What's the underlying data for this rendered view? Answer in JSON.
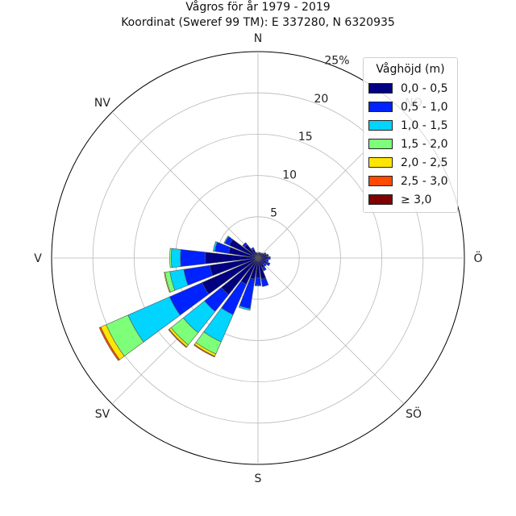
{
  "title_line1": "Vågros för år 1979 - 2019",
  "title_line2": "Koordinat (Sweref 99 TM): E 337280, N 6320935",
  "chart_data": {
    "type": "wind-rose (stacked polar bar)",
    "radial_unit": "%",
    "radial_ticks": [
      "5",
      "10",
      "15",
      "20",
      "25%"
    ],
    "radial_max": 25,
    "grid": true,
    "direction_labels": [
      {
        "label": "N",
        "angle": 0
      },
      {
        "label": "NO",
        "angle": 45
      },
      {
        "label": "Ö",
        "angle": 90
      },
      {
        "label": "SÖ",
        "angle": 135
      },
      {
        "label": "S",
        "angle": 180
      },
      {
        "label": "SV",
        "angle": 225
      },
      {
        "label": "V",
        "angle": 270
      },
      {
        "label": "NV",
        "angle": 315
      }
    ],
    "legend_title": "Våghöjd (m)",
    "legend_placement": "top-right",
    "bins": [
      {
        "label": "0,0 - 0,5",
        "color": "#000080"
      },
      {
        "label": "0,5 - 1,0",
        "color": "#0022ff"
      },
      {
        "label": "1,0 - 1,5",
        "color": "#00d4ff"
      },
      {
        "label": "1,5 - 2,0",
        "color": "#7dff7a"
      },
      {
        "label": "2,0 - 2,5",
        "color": "#ffe600"
      },
      {
        "label": "2,5 - 3,0",
        "color": "#ff4a00"
      },
      {
        "label": "≥ 3,0",
        "color": "#800000"
      }
    ],
    "sectors": [
      {
        "direction": 0,
        "values": [
          0.5,
          0.1,
          0,
          0,
          0,
          0,
          0
        ]
      },
      {
        "direction": 15,
        "values": [
          0.6,
          0.1,
          0,
          0,
          0,
          0,
          0
        ]
      },
      {
        "direction": 30,
        "values": [
          0.6,
          0.1,
          0,
          0,
          0,
          0,
          0
        ]
      },
      {
        "direction": 45,
        "values": [
          0.7,
          0.1,
          0,
          0,
          0,
          0,
          0
        ]
      },
      {
        "direction": 60,
        "values": [
          0.9,
          0.2,
          0,
          0,
          0,
          0,
          0
        ]
      },
      {
        "direction": 75,
        "values": [
          1.1,
          0.2,
          0,
          0,
          0,
          0,
          0
        ]
      },
      {
        "direction": 90,
        "values": [
          1.2,
          0.3,
          0,
          0,
          0,
          0,
          0
        ]
      },
      {
        "direction": 105,
        "values": [
          1.0,
          0.3,
          0,
          0,
          0,
          0,
          0
        ]
      },
      {
        "direction": 120,
        "values": [
          1.2,
          0.4,
          0,
          0,
          0,
          0,
          0
        ]
      },
      {
        "direction": 135,
        "values": [
          1.0,
          0.3,
          0,
          0,
          0,
          0,
          0
        ]
      },
      {
        "direction": 150,
        "values": [
          1.3,
          0.4,
          0,
          0,
          0,
          0,
          0
        ]
      },
      {
        "direction": 165,
        "values": [
          2.6,
          0.9,
          0,
          0,
          0,
          0,
          0
        ]
      },
      {
        "direction": 180,
        "values": [
          2.4,
          0.9,
          0.1,
          0,
          0,
          0,
          0
        ]
      },
      {
        "direction": 195,
        "values": [
          2.6,
          3.6,
          0.2,
          0,
          0,
          0,
          0
        ]
      },
      {
        "direction": 210,
        "values": [
          3.5,
          4.0,
          3.6,
          1.6,
          0.3,
          0.1,
          0
        ]
      },
      {
        "direction": 225,
        "values": [
          5.7,
          2.6,
          3.3,
          1.9,
          0.3,
          0.1,
          0
        ]
      },
      {
        "direction": 240,
        "values": [
          7.4,
          4.3,
          5.5,
          2.9,
          0.7,
          0.2,
          0
        ]
      },
      {
        "direction": 255,
        "values": [
          5.9,
          3.2,
          1.7,
          0.6,
          0.1,
          0,
          0
        ]
      },
      {
        "direction": 270,
        "values": [
          6.4,
          3.0,
          1.1,
          0.2,
          0,
          0,
          0
        ]
      },
      {
        "direction": 285,
        "values": [
          3.6,
          1.7,
          0.2,
          0,
          0,
          0,
          0
        ]
      },
      {
        "direction": 300,
        "values": [
          3.8,
          0.6,
          0.1,
          0,
          0,
          0,
          0
        ]
      },
      {
        "direction": 315,
        "values": [
          2.1,
          0.3,
          0,
          0,
          0,
          0,
          0
        ]
      },
      {
        "direction": 330,
        "values": [
          1.2,
          0.2,
          0,
          0,
          0,
          0,
          0
        ]
      },
      {
        "direction": 345,
        "values": [
          0.6,
          0.1,
          0,
          0,
          0,
          0,
          0
        ]
      }
    ]
  }
}
